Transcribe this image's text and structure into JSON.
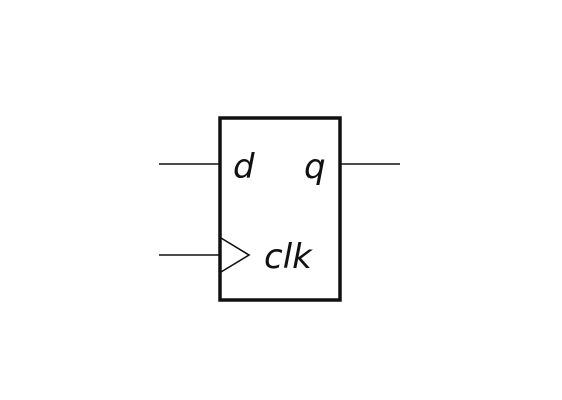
{
  "flipflop": {
    "input_d_label": "d",
    "output_q_label": "q",
    "clock_label": "clk"
  },
  "colors": {
    "stroke": "#111111",
    "text": "#111111",
    "background": "#ffffff"
  }
}
